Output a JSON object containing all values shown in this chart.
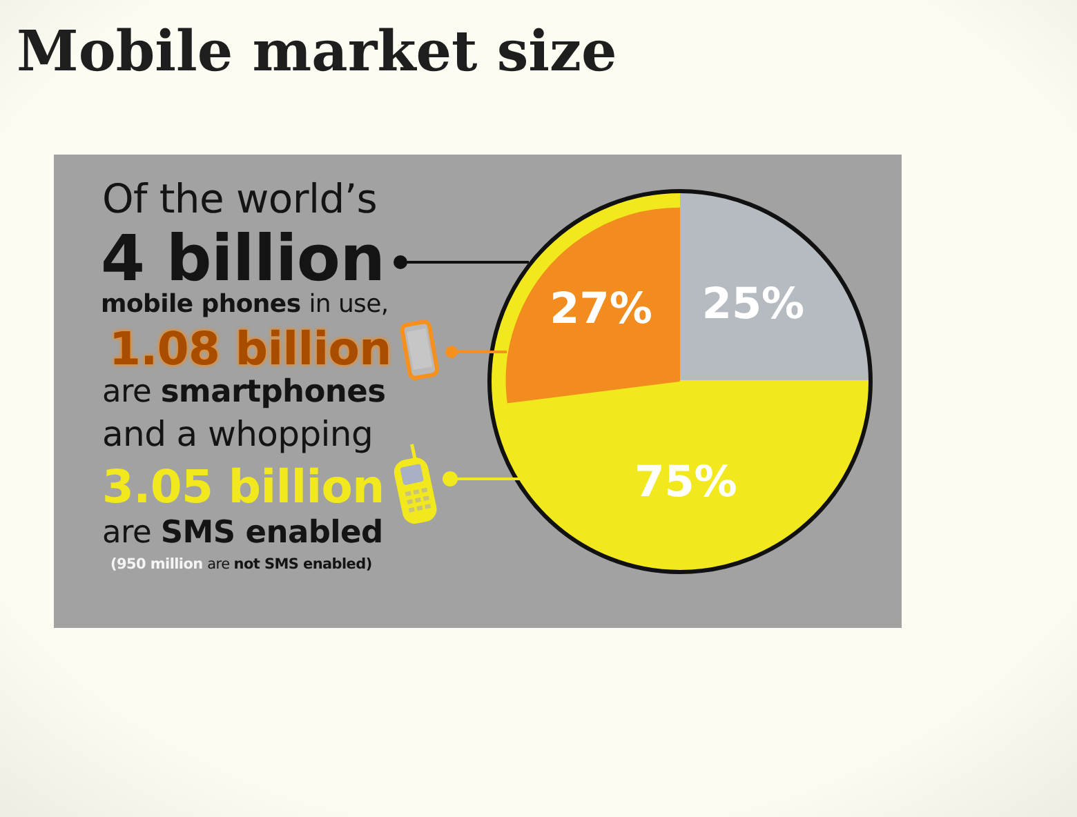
{
  "chart_data": {
    "type": "pie",
    "title": "Mobile market size",
    "categories": [
      null,
      null,
      null
    ],
    "series": [
      {
        "values": [
          25,
          75,
          null
        ],
        "colors": [
          "#b6bbc1",
          "#f2e81e",
          null
        ],
        "value_labels": [
          "25%",
          "75%",
          null
        ]
      },
      {
        "values": [
          25,
          48,
          27
        ],
        "colors": [
          "#b6bbc1",
          "#f2e81e",
          "#f28c1e"
        ],
        "value_labels": [
          null,
          null,
          "27%"
        ]
      }
    ],
    "annotations": [
      "Of the world’s",
      "4 billion",
      "mobile phones in use,",
      "1.08 billion",
      "are smartphones",
      "and a whopping",
      "3.05 billion",
      "are SMS enabled",
      "(950 million are not SMS enabled)"
    ]
  }
}
